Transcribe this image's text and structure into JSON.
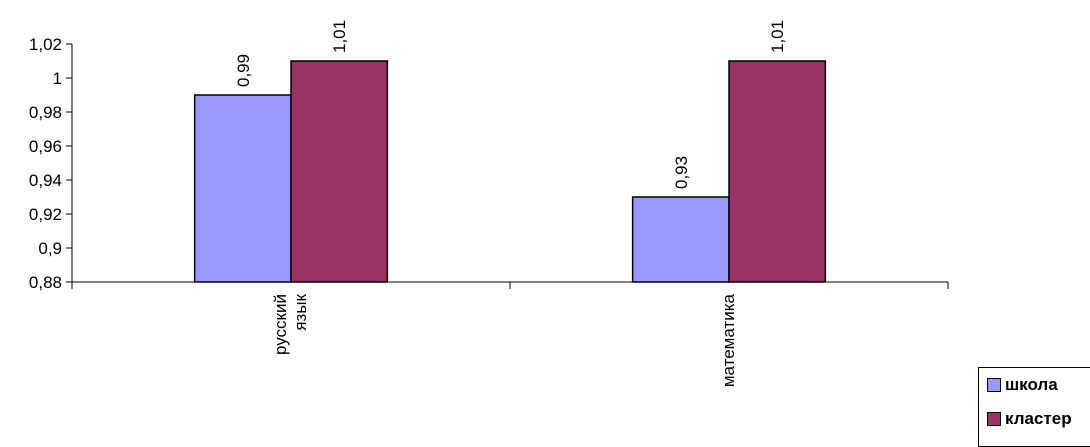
{
  "chart_data": {
    "type": "bar",
    "categories": [
      [
        "русский",
        "язык"
      ],
      [
        "математика"
      ]
    ],
    "series": [
      {
        "name": "школа",
        "values": [
          0.99,
          0.93
        ],
        "color": "#9999ff"
      },
      {
        "name": "кластер",
        "values": [
          1.01,
          1.01
        ],
        "color": "#993366"
      }
    ],
    "data_labels": [
      [
        "0,99",
        "0,93"
      ],
      [
        "1,01",
        "1,01"
      ]
    ],
    "ylim": [
      0.88,
      1.02
    ],
    "yticks": [
      0.88,
      0.9,
      0.92,
      0.94,
      0.96,
      0.98,
      1,
      1.02
    ],
    "ytick_labels": [
      "0,88",
      "0,9",
      "0,92",
      "0,94",
      "0,96",
      "0,98",
      "1",
      "1,02"
    ],
    "grid": false,
    "legend_position": "bottom-right"
  }
}
